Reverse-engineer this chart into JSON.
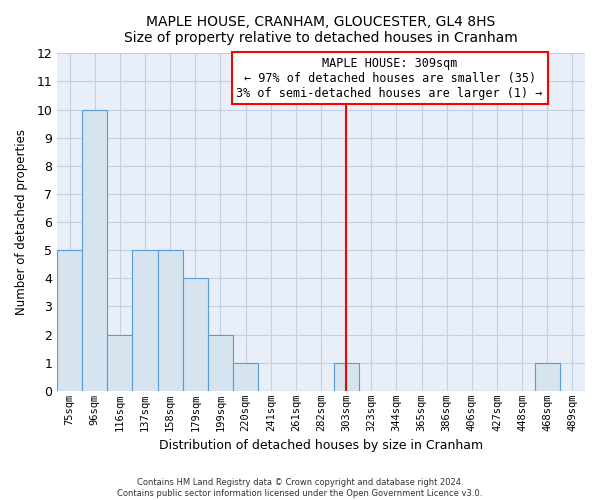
{
  "title": "MAPLE HOUSE, CRANHAM, GLOUCESTER, GL4 8HS",
  "subtitle": "Size of property relative to detached houses in Cranham",
  "xlabel": "Distribution of detached houses by size in Cranham",
  "ylabel": "Number of detached properties",
  "bar_labels": [
    "75sqm",
    "96sqm",
    "116sqm",
    "137sqm",
    "158sqm",
    "179sqm",
    "199sqm",
    "220sqm",
    "241sqm",
    "261sqm",
    "282sqm",
    "303sqm",
    "323sqm",
    "344sqm",
    "365sqm",
    "386sqm",
    "406sqm",
    "427sqm",
    "448sqm",
    "468sqm",
    "489sqm"
  ],
  "bar_values": [
    5,
    10,
    2,
    5,
    5,
    4,
    2,
    1,
    0,
    0,
    0,
    1,
    0,
    0,
    0,
    0,
    0,
    0,
    0,
    1,
    0
  ],
  "bar_color": "#d6e4f0",
  "bar_edge_color": "#5b9bd5",
  "red_line_x": 11.0,
  "ylim": [
    0,
    12
  ],
  "yticks": [
    0,
    1,
    2,
    3,
    4,
    5,
    6,
    7,
    8,
    9,
    10,
    11,
    12
  ],
  "annotation_title": "MAPLE HOUSE: 309sqm",
  "annotation_line1": "← 97% of detached houses are smaller (35)",
  "annotation_line2": "3% of semi-detached houses are larger (1) →",
  "footer_line1": "Contains HM Land Registry data © Crown copyright and database right 2024.",
  "footer_line2": "Contains public sector information licensed under the Open Government Licence v3.0.",
  "grid_color": "#c5cfe0",
  "plot_bg_color": "#e8eff8",
  "fig_bg_color": "#ffffff"
}
